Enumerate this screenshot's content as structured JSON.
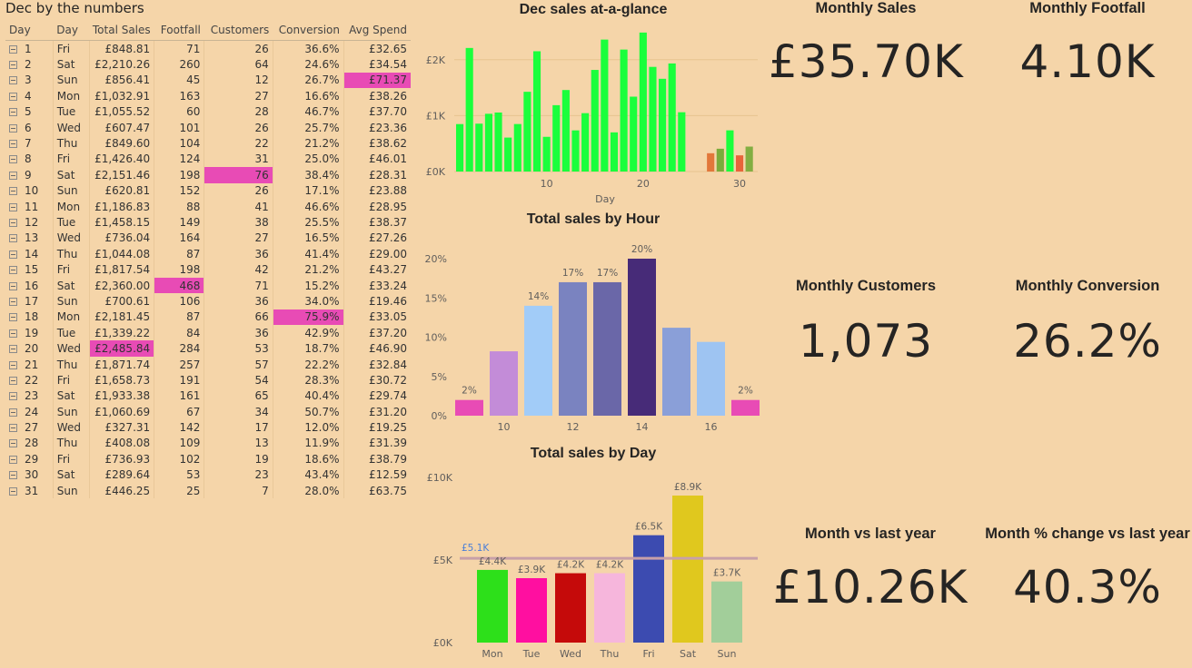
{
  "table": {
    "title": "Dec by the numbers",
    "columns": [
      "Day",
      "Day",
      "Total Sales",
      "Footfall",
      "Customers",
      "Conversion",
      "Avg Spend"
    ],
    "rows": [
      {
        "day": "1",
        "dow": "Fri",
        "sales": "£848.81",
        "footfall": "71",
        "customers": "26",
        "conversion": "36.6%",
        "avg": "£32.65"
      },
      {
        "day": "2",
        "dow": "Sat",
        "sales": "£2,210.26",
        "footfall": "260",
        "customers": "64",
        "conversion": "24.6%",
        "avg": "£34.54"
      },
      {
        "day": "3",
        "dow": "Sun",
        "sales": "£856.41",
        "footfall": "45",
        "customers": "12",
        "conversion": "26.7%",
        "avg": "£71.37",
        "hl": "avg"
      },
      {
        "day": "4",
        "dow": "Mon",
        "sales": "£1,032.91",
        "footfall": "163",
        "customers": "27",
        "conversion": "16.6%",
        "avg": "£38.26"
      },
      {
        "day": "5",
        "dow": "Tue",
        "sales": "£1,055.52",
        "footfall": "60",
        "customers": "28",
        "conversion": "46.7%",
        "avg": "£37.70"
      },
      {
        "day": "6",
        "dow": "Wed",
        "sales": "£607.47",
        "footfall": "101",
        "customers": "26",
        "conversion": "25.7%",
        "avg": "£23.36"
      },
      {
        "day": "7",
        "dow": "Thu",
        "sales": "£849.60",
        "footfall": "104",
        "customers": "22",
        "conversion": "21.2%",
        "avg": "£38.62"
      },
      {
        "day": "8",
        "dow": "Fri",
        "sales": "£1,426.40",
        "footfall": "124",
        "customers": "31",
        "conversion": "25.0%",
        "avg": "£46.01"
      },
      {
        "day": "9",
        "dow": "Sat",
        "sales": "£2,151.46",
        "footfall": "198",
        "customers": "76",
        "conversion": "38.4%",
        "avg": "£28.31",
        "hl": "customers"
      },
      {
        "day": "10",
        "dow": "Sun",
        "sales": "£620.81",
        "footfall": "152",
        "customers": "26",
        "conversion": "17.1%",
        "avg": "£23.88"
      },
      {
        "day": "11",
        "dow": "Mon",
        "sales": "£1,186.83",
        "footfall": "88",
        "customers": "41",
        "conversion": "46.6%",
        "avg": "£28.95"
      },
      {
        "day": "12",
        "dow": "Tue",
        "sales": "£1,458.15",
        "footfall": "149",
        "customers": "38",
        "conversion": "25.5%",
        "avg": "£38.37"
      },
      {
        "day": "13",
        "dow": "Wed",
        "sales": "£736.04",
        "footfall": "164",
        "customers": "27",
        "conversion": "16.5%",
        "avg": "£27.26"
      },
      {
        "day": "14",
        "dow": "Thu",
        "sales": "£1,044.08",
        "footfall": "87",
        "customers": "36",
        "conversion": "41.4%",
        "avg": "£29.00"
      },
      {
        "day": "15",
        "dow": "Fri",
        "sales": "£1,817.54",
        "footfall": "198",
        "customers": "42",
        "conversion": "21.2%",
        "avg": "£43.27"
      },
      {
        "day": "16",
        "dow": "Sat",
        "sales": "£2,360.00",
        "footfall": "468",
        "customers": "71",
        "conversion": "15.2%",
        "avg": "£33.24",
        "hl": "footfall"
      },
      {
        "day": "17",
        "dow": "Sun",
        "sales": "£700.61",
        "footfall": "106",
        "customers": "36",
        "conversion": "34.0%",
        "avg": "£19.46"
      },
      {
        "day": "18",
        "dow": "Mon",
        "sales": "£2,181.45",
        "footfall": "87",
        "customers": "66",
        "conversion": "75.9%",
        "avg": "£33.05",
        "hl": "conversion"
      },
      {
        "day": "19",
        "dow": "Tue",
        "sales": "£1,339.22",
        "footfall": "84",
        "customers": "36",
        "conversion": "42.9%",
        "avg": "£37.20"
      },
      {
        "day": "20",
        "dow": "Wed",
        "sales": "£2,485.84",
        "footfall": "284",
        "customers": "53",
        "conversion": "18.7%",
        "avg": "£46.90",
        "hl": "sales"
      },
      {
        "day": "21",
        "dow": "Thu",
        "sales": "£1,871.74",
        "footfall": "257",
        "customers": "57",
        "conversion": "22.2%",
        "avg": "£32.84"
      },
      {
        "day": "22",
        "dow": "Fri",
        "sales": "£1,658.73",
        "footfall": "191",
        "customers": "54",
        "conversion": "28.3%",
        "avg": "£30.72"
      },
      {
        "day": "23",
        "dow": "Sat",
        "sales": "£1,933.38",
        "footfall": "161",
        "customers": "65",
        "conversion": "40.4%",
        "avg": "£29.74"
      },
      {
        "day": "24",
        "dow": "Sun",
        "sales": "£1,060.69",
        "footfall": "67",
        "customers": "34",
        "conversion": "50.7%",
        "avg": "£31.20"
      },
      {
        "day": "27",
        "dow": "Wed",
        "sales": "£327.31",
        "footfall": "142",
        "customers": "17",
        "conversion": "12.0%",
        "avg": "£19.25"
      },
      {
        "day": "28",
        "dow": "Thu",
        "sales": "£408.08",
        "footfall": "109",
        "customers": "13",
        "conversion": "11.9%",
        "avg": "£31.39"
      },
      {
        "day": "29",
        "dow": "Fri",
        "sales": "£736.93",
        "footfall": "102",
        "customers": "19",
        "conversion": "18.6%",
        "avg": "£38.79"
      },
      {
        "day": "30",
        "dow": "Sat",
        "sales": "£289.64",
        "footfall": "53",
        "customers": "23",
        "conversion": "43.4%",
        "avg": "£12.59"
      },
      {
        "day": "31",
        "dow": "Sun",
        "sales": "£446.25",
        "footfall": "25",
        "customers": "7",
        "conversion": "28.0%",
        "avg": "£63.75"
      }
    ]
  },
  "kpis": [
    {
      "label": "Monthly Sales",
      "value": "£35.70K"
    },
    {
      "label": "Monthly Footfall",
      "value": "4.10K"
    },
    {
      "label": "Monthly Customers",
      "value": "1,073"
    },
    {
      "label": "Monthly Conversion",
      "value": "26.2%"
    },
    {
      "label": "Month vs last year",
      "value": "£10.26K"
    },
    {
      "label": "Month % change vs last year",
      "value": "40.3%"
    }
  ],
  "chart_data": [
    {
      "type": "bar",
      "title": "Dec sales at-a-glance",
      "xlabel": "Day",
      "ylabel": "",
      "ylim": [
        0,
        2500
      ],
      "xlim": [
        1,
        31
      ],
      "yticks": [
        "£0K",
        "£1K",
        "£2K"
      ],
      "xticks": [
        "10",
        "20",
        "30"
      ],
      "x": [
        1,
        2,
        3,
        4,
        5,
        6,
        7,
        8,
        9,
        10,
        11,
        12,
        13,
        14,
        15,
        16,
        17,
        18,
        19,
        20,
        21,
        22,
        23,
        24,
        27,
        28,
        29,
        30,
        31
      ],
      "values": [
        848.81,
        2210.26,
        856.41,
        1032.91,
        1055.52,
        607.47,
        849.6,
        1426.4,
        2151.46,
        620.81,
        1186.83,
        1458.15,
        736.04,
        1044.08,
        1817.54,
        2360.0,
        700.61,
        2181.45,
        1339.22,
        2485.84,
        1871.74,
        1658.73,
        1933.38,
        1060.69,
        327.31,
        408.08,
        736.93,
        289.64,
        446.25
      ],
      "colors": [
        "#1aff3c",
        "#1aff3c",
        "#1aff3c",
        "#1aff3c",
        "#1aff3c",
        "#1aff3c",
        "#1aff3c",
        "#1aff3c",
        "#1aff3c",
        "#1aff3c",
        "#1aff3c",
        "#1aff3c",
        "#1aff3c",
        "#1aff3c",
        "#1aff3c",
        "#1aff3c",
        "#1aff3c",
        "#1aff3c",
        "#1aff3c",
        "#1aff3c",
        "#1aff3c",
        "#1aff3c",
        "#1aff3c",
        "#1aff3c",
        "#e2773a",
        "#7aab3a",
        "#1aff3c",
        "#e8643a",
        "#82ae42"
      ]
    },
    {
      "type": "bar",
      "title": "Total sales by Hour",
      "xlabel": "",
      "ylabel": "",
      "ylim": [
        0,
        20
      ],
      "yticks": [
        "0%",
        "5%",
        "10%",
        "15%",
        "20%"
      ],
      "xticks": [
        "10",
        "12",
        "14",
        "16"
      ],
      "x": [
        9,
        10,
        11,
        12,
        13,
        14,
        15,
        16,
        17
      ],
      "values": [
        2,
        8.2,
        14,
        17,
        17,
        20,
        11.2,
        9.4,
        2
      ],
      "labels": [
        "2%",
        "",
        "14%",
        "17%",
        "17%",
        "20%",
        "",
        "",
        "2%"
      ],
      "colors": [
        "#e84bb5",
        "#c38cd8",
        "#a2ccf8",
        "#7a83c0",
        "#6a67a8",
        "#472b78",
        "#8a9fd8",
        "#9ec4f2",
        "#e84bb5"
      ]
    },
    {
      "type": "bar",
      "title": "Total sales by Day",
      "xlabel": "",
      "ylabel": "",
      "ylim": [
        0,
        10000
      ],
      "yticks": [
        "£0K",
        "£5K",
        "£10K"
      ],
      "categories": [
        "Mon",
        "Tue",
        "Wed",
        "Thu",
        "Fri",
        "Sat",
        "Sun"
      ],
      "values": [
        4400,
        3900,
        4200,
        4200,
        6500,
        8900,
        3700
      ],
      "labels": [
        "£4.4K",
        "£3.9K",
        "£4.2K",
        "£4.2K",
        "£6.5K",
        "£8.9K",
        "£3.7K"
      ],
      "colors": [
        "#2de01a",
        "#ff0fa0",
        "#c50a0a",
        "#f6b6dc",
        "#3c4bb0",
        "#e0c81e",
        "#a2ce9a"
      ],
      "reference_line": {
        "value": 5100,
        "label": "£5.1K",
        "color": "#c8a0a8",
        "label_color": "#4a7fd8"
      }
    }
  ]
}
